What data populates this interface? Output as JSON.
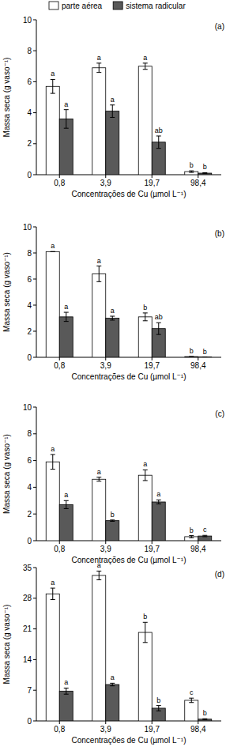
{
  "chart_data": [
    {
      "type": "bar",
      "title": "(a)",
      "x_label": "Concentrações de Cu (µmol L⁻¹)",
      "y_label": "Massa seca (g vaso⁻¹)",
      "categories": [
        "0,8",
        "3,9",
        "19,7",
        "98,4"
      ],
      "ylim": [
        0,
        10
      ],
      "yticks": [
        0,
        2,
        4,
        6,
        8,
        10
      ],
      "legend": "top",
      "series": [
        {
          "name": "parte aérea",
          "color": "#ffffff",
          "values": [
            5.7,
            6.9,
            7.0,
            0.2
          ],
          "errors": [
            0.45,
            0.3,
            0.2,
            0.05
          ],
          "letters": [
            "a",
            "a",
            "a",
            "b"
          ]
        },
        {
          "name": "sistema radicular",
          "color": "#595959",
          "values": [
            3.6,
            4.1,
            2.1,
            0.1
          ],
          "errors": [
            0.6,
            0.4,
            0.4,
            0.03
          ],
          "letters": [
            "a",
            "a",
            "ab",
            "b"
          ]
        }
      ]
    },
    {
      "type": "bar",
      "title": "(b)",
      "x_label": "Concentrações de Cu (µmol L⁻¹)",
      "y_label": "Massa seca (g vaso⁻¹)",
      "categories": [
        "0,8",
        "3,9",
        "19,7",
        "98,4"
      ],
      "ylim": [
        0,
        10
      ],
      "yticks": [
        0,
        2,
        4,
        6,
        8,
        10
      ],
      "series": [
        {
          "name": "parte aérea",
          "color": "#ffffff",
          "values": [
            8.1,
            6.4,
            3.1,
            0.05
          ],
          "errors": [
            0,
            0.6,
            0.3,
            0.01
          ],
          "letters": [
            "a",
            "a",
            "b",
            "b"
          ]
        },
        {
          "name": "sistema radicular",
          "color": "#595959",
          "values": [
            3.1,
            3.0,
            2.2,
            0.02
          ],
          "errors": [
            0.35,
            0.15,
            0.45,
            0.01
          ],
          "letters": [
            "a",
            "a",
            "ab",
            "b"
          ]
        }
      ]
    },
    {
      "type": "bar",
      "title": "(c)",
      "x_label": "Concentrações de Cu (µmol L⁻¹)",
      "y_label": "Massa seca (g vaso⁻¹)",
      "categories": [
        "0,8",
        "3,9",
        "19,7",
        "98,4"
      ],
      "ylim": [
        0,
        10
      ],
      "yticks": [
        0,
        2,
        4,
        6,
        8,
        10
      ],
      "series": [
        {
          "name": "parte aérea",
          "color": "#ffffff",
          "values": [
            5.9,
            4.6,
            4.9,
            0.3
          ],
          "errors": [
            0.55,
            0.15,
            0.4,
            0.08
          ],
          "letters": [
            "a",
            "a",
            "a",
            "b"
          ]
        },
        {
          "name": "sistema radicular",
          "color": "#595959",
          "values": [
            2.7,
            1.5,
            2.9,
            0.35
          ],
          "errors": [
            0.3,
            0.05,
            0.15,
            0.05
          ],
          "letters": [
            "a",
            "b",
            "a",
            "c"
          ]
        }
      ]
    },
    {
      "type": "bar",
      "title": "(d)",
      "x_label": "Concentrações de Cu (µmol L⁻¹)",
      "y_label": "Massa seca (g vaso⁻¹)",
      "categories": [
        "0,8",
        "3,9",
        "19,7",
        "98,4"
      ],
      "ylim": [
        0,
        35
      ],
      "yticks": [
        0,
        7,
        14,
        21,
        28,
        35
      ],
      "series": [
        {
          "name": "parte aérea",
          "color": "#ffffff",
          "values": [
            29.0,
            33.2,
            20.2,
            4.7
          ],
          "errors": [
            1.3,
            1.0,
            2.3,
            0.5
          ],
          "letters": [
            "a",
            "a",
            "b",
            "c"
          ]
        },
        {
          "name": "sistema radicular",
          "color": "#595959",
          "values": [
            6.8,
            8.3,
            2.9,
            0.4
          ],
          "errors": [
            0.7,
            0.3,
            0.6,
            0.1
          ],
          "letters": [
            "a",
            "a",
            "b",
            "b"
          ]
        }
      ]
    }
  ]
}
